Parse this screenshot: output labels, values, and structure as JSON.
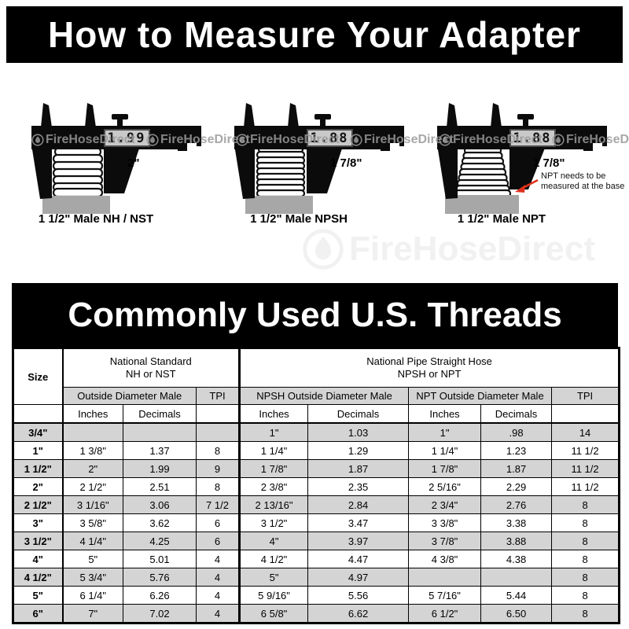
{
  "banner_top": {
    "title": "How to Measure Your Adapter"
  },
  "watermark": {
    "brand": "FireHoseDirect"
  },
  "calipers": [
    {
      "display": "1.99",
      "size_label": "2\"",
      "caption": "1 1/2\" Male NH / NST"
    },
    {
      "display": "1.88",
      "size_label": "1 7/8\"",
      "caption": "1 1/2\" Male NPSH"
    },
    {
      "display": "1.88",
      "size_label": "1 7/8\"",
      "caption": "1 1/2\" Male NPT",
      "note_line1": "NPT needs to be",
      "note_line2": "measured at the base",
      "arrow_color": "#e0301e"
    }
  ],
  "table": {
    "title": "Commonly Used U.S. Threads",
    "header": {
      "size": "Size",
      "group_nh_line1": "National Standard",
      "group_nh_line2": "NH or NST",
      "group_pipe_line1": "National Pipe Straight Hose",
      "group_pipe_line2": "NPSH or NPT",
      "sub_nh": "Outside Diameter Male",
      "sub_npsh": "NPSH Outside Diameter Male",
      "sub_npt": "NPT Outside Diameter Male",
      "tpi": "TPI",
      "inches": "Inches",
      "decimals": "Decimals"
    },
    "colors": {
      "row_alt": "#d4d4d4",
      "header_gray": "#d4d4d4",
      "border": "#000000"
    },
    "rows": [
      {
        "size": "3/4\"",
        "nh_in": "",
        "nh_dec": "",
        "nh_tpi": "",
        "npsh_in": "1\"",
        "npsh_dec": "1.03",
        "npt_in": "1\"",
        "npt_dec": ".98",
        "tpi": "14"
      },
      {
        "size": "1\"",
        "nh_in": "1 3/8\"",
        "nh_dec": "1.37",
        "nh_tpi": "8",
        "npsh_in": "1 1/4\"",
        "npsh_dec": "1.29",
        "npt_in": "1 1/4\"",
        "npt_dec": "1.23",
        "tpi": "11 1/2"
      },
      {
        "size": "1 1/2\"",
        "nh_in": "2\"",
        "nh_dec": "1.99",
        "nh_tpi": "9",
        "npsh_in": "1 7/8\"",
        "npsh_dec": "1.87",
        "npt_in": "1 7/8\"",
        "npt_dec": "1.87",
        "tpi": "11 1/2"
      },
      {
        "size": "2\"",
        "nh_in": "2 1/2\"",
        "nh_dec": "2.51",
        "nh_tpi": "8",
        "npsh_in": "2 3/8\"",
        "npsh_dec": "2.35",
        "npt_in": "2 5/16\"",
        "npt_dec": "2.29",
        "tpi": "11 1/2"
      },
      {
        "size": "2 1/2\"",
        "nh_in": "3 1/16\"",
        "nh_dec": "3.06",
        "nh_tpi": "7 1/2",
        "npsh_in": "2 13/16\"",
        "npsh_dec": "2.84",
        "npt_in": "2 3/4\"",
        "npt_dec": "2.76",
        "tpi": "8"
      },
      {
        "size": "3\"",
        "nh_in": "3 5/8\"",
        "nh_dec": "3.62",
        "nh_tpi": "6",
        "npsh_in": "3 1/2\"",
        "npsh_dec": "3.47",
        "npt_in": "3 3/8\"",
        "npt_dec": "3.38",
        "tpi": "8"
      },
      {
        "size": "3 1/2\"",
        "nh_in": "4 1/4\"",
        "nh_dec": "4.25",
        "nh_tpi": "6",
        "npsh_in": "4\"",
        "npsh_dec": "3.97",
        "npt_in": "3 7/8\"",
        "npt_dec": "3.88",
        "tpi": "8"
      },
      {
        "size": "4\"",
        "nh_in": "5\"",
        "nh_dec": "5.01",
        "nh_tpi": "4",
        "npsh_in": "4 1/2\"",
        "npsh_dec": "4.47",
        "npt_in": "4 3/8\"",
        "npt_dec": "4.38",
        "tpi": "8"
      },
      {
        "size": "4 1/2\"",
        "nh_in": "5 3/4\"",
        "nh_dec": "5.76",
        "nh_tpi": "4",
        "npsh_in": "5\"",
        "npsh_dec": "4.97",
        "npt_in": "",
        "npt_dec": "",
        "tpi": "8"
      },
      {
        "size": "5\"",
        "nh_in": "6 1/4\"",
        "nh_dec": "6.26",
        "nh_tpi": "4",
        "npsh_in": "5 9/16\"",
        "npsh_dec": "5.56",
        "npt_in": "5 7/16\"",
        "npt_dec": "5.44",
        "tpi": "8"
      },
      {
        "size": "6\"",
        "nh_in": "7\"",
        "nh_dec": "7.02",
        "nh_tpi": "4",
        "npsh_in": "6 5/8\"",
        "npsh_dec": "6.62",
        "npt_in": "6 1/2\"",
        "npt_dec": "6.50",
        "tpi": "8"
      }
    ]
  }
}
